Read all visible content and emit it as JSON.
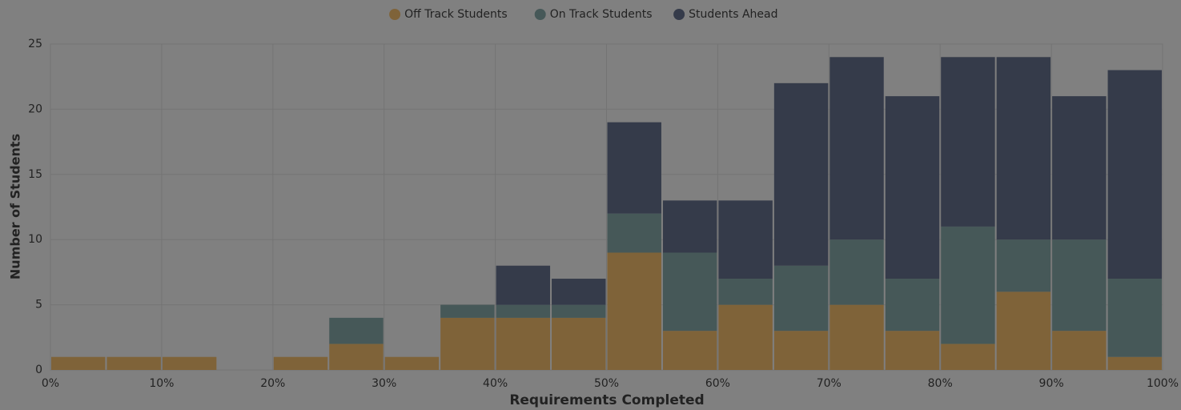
{
  "chart_data": {
    "type": "histogram",
    "xlabel": "Requirements Completed",
    "ylabel": "Number of Students",
    "bins": [
      0,
      5,
      10,
      15,
      20,
      25,
      30,
      35,
      40,
      45,
      50,
      55,
      60,
      65,
      70,
      75,
      80,
      85,
      90,
      95,
      100
    ],
    "series": [
      {
        "name": "Off Track Students",
        "color": "#7f6339",
        "values": [
          1,
          1,
          1,
          0,
          1,
          2,
          1,
          4,
          4,
          4,
          9,
          3,
          5,
          3,
          5,
          3,
          2,
          6,
          3,
          1
        ]
      },
      {
        "name": "On Track Students",
        "color": "#465858",
        "values": [
          0,
          0,
          0,
          0,
          0,
          2,
          0,
          1,
          1,
          1,
          3,
          6,
          2,
          5,
          5,
          4,
          9,
          4,
          7,
          6
        ]
      },
      {
        "name": "Students Ahead",
        "color": "#353b4a",
        "values": [
          0,
          0,
          0,
          0,
          0,
          0,
          0,
          0,
          3,
          2,
          7,
          4,
          6,
          14,
          14,
          14,
          13,
          14,
          11,
          16
        ]
      }
    ],
    "stacked": true,
    "xlim": [
      0,
      100
    ],
    "xticks": [
      {
        "value": 0,
        "label": "0%"
      },
      {
        "value": 10,
        "label": "10%"
      },
      {
        "value": 20,
        "label": "20%"
      },
      {
        "value": 30,
        "label": "30%"
      },
      {
        "value": 40,
        "label": "40%"
      },
      {
        "value": 50,
        "label": "50%"
      },
      {
        "value": 60,
        "label": "60%"
      },
      {
        "value": 70,
        "label": "70%"
      },
      {
        "value": 80,
        "label": "80%"
      },
      {
        "value": 90,
        "label": "90%"
      },
      {
        "value": 100,
        "label": "100%"
      }
    ],
    "ylim": [
      0,
      25
    ],
    "yticks": [
      0,
      5,
      10,
      15,
      20,
      25
    ],
    "grid": true,
    "legend": "top"
  }
}
